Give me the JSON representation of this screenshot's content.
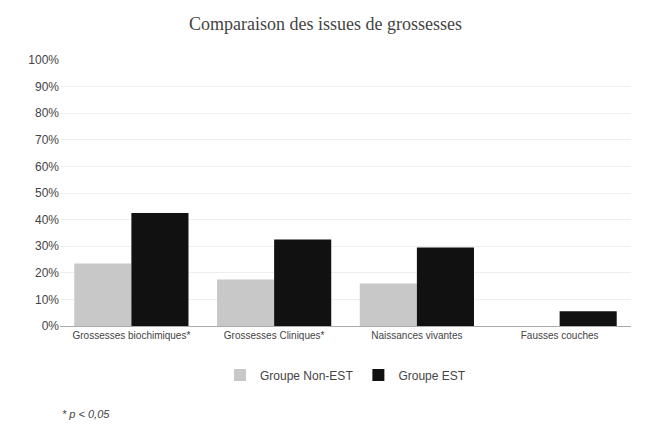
{
  "chart_data": {
    "type": "bar",
    "title": "Comparaison des issues de grossesses",
    "categories": [
      "Grossesses biochimiques*",
      "Grossesses Cliniques*",
      "Naissances vivantes",
      "Fausses couches"
    ],
    "series": [
      {
        "name": "Groupe Non-EST",
        "color": "#c8c8c8",
        "values": [
          0.235,
          0.175,
          0.16,
          0.0
        ]
      },
      {
        "name": "Groupe EST",
        "color": "#111111",
        "values": [
          0.425,
          0.325,
          0.295,
          0.055
        ]
      }
    ],
    "ylim": [
      0,
      1.0
    ],
    "yticks": [
      {
        "value": 0.0,
        "label": "0%"
      },
      {
        "value": 0.1,
        "label": "10%"
      },
      {
        "value": 0.2,
        "label": "20%"
      },
      {
        "value": 0.3,
        "label": "30%"
      },
      {
        "value": 0.4,
        "label": "40%"
      },
      {
        "value": 0.5,
        "label": "50%"
      },
      {
        "value": 0.6,
        "label": "60%"
      },
      {
        "value": 0.7,
        "label": "70%"
      },
      {
        "value": 0.8,
        "label": "80%"
      },
      {
        "value": 0.9,
        "label": "90%"
      },
      {
        "value": 1.0,
        "label": "100%"
      }
    ],
    "grid": true,
    "legend": "bottom",
    "annotations": [
      "* p < 0,05"
    ]
  }
}
